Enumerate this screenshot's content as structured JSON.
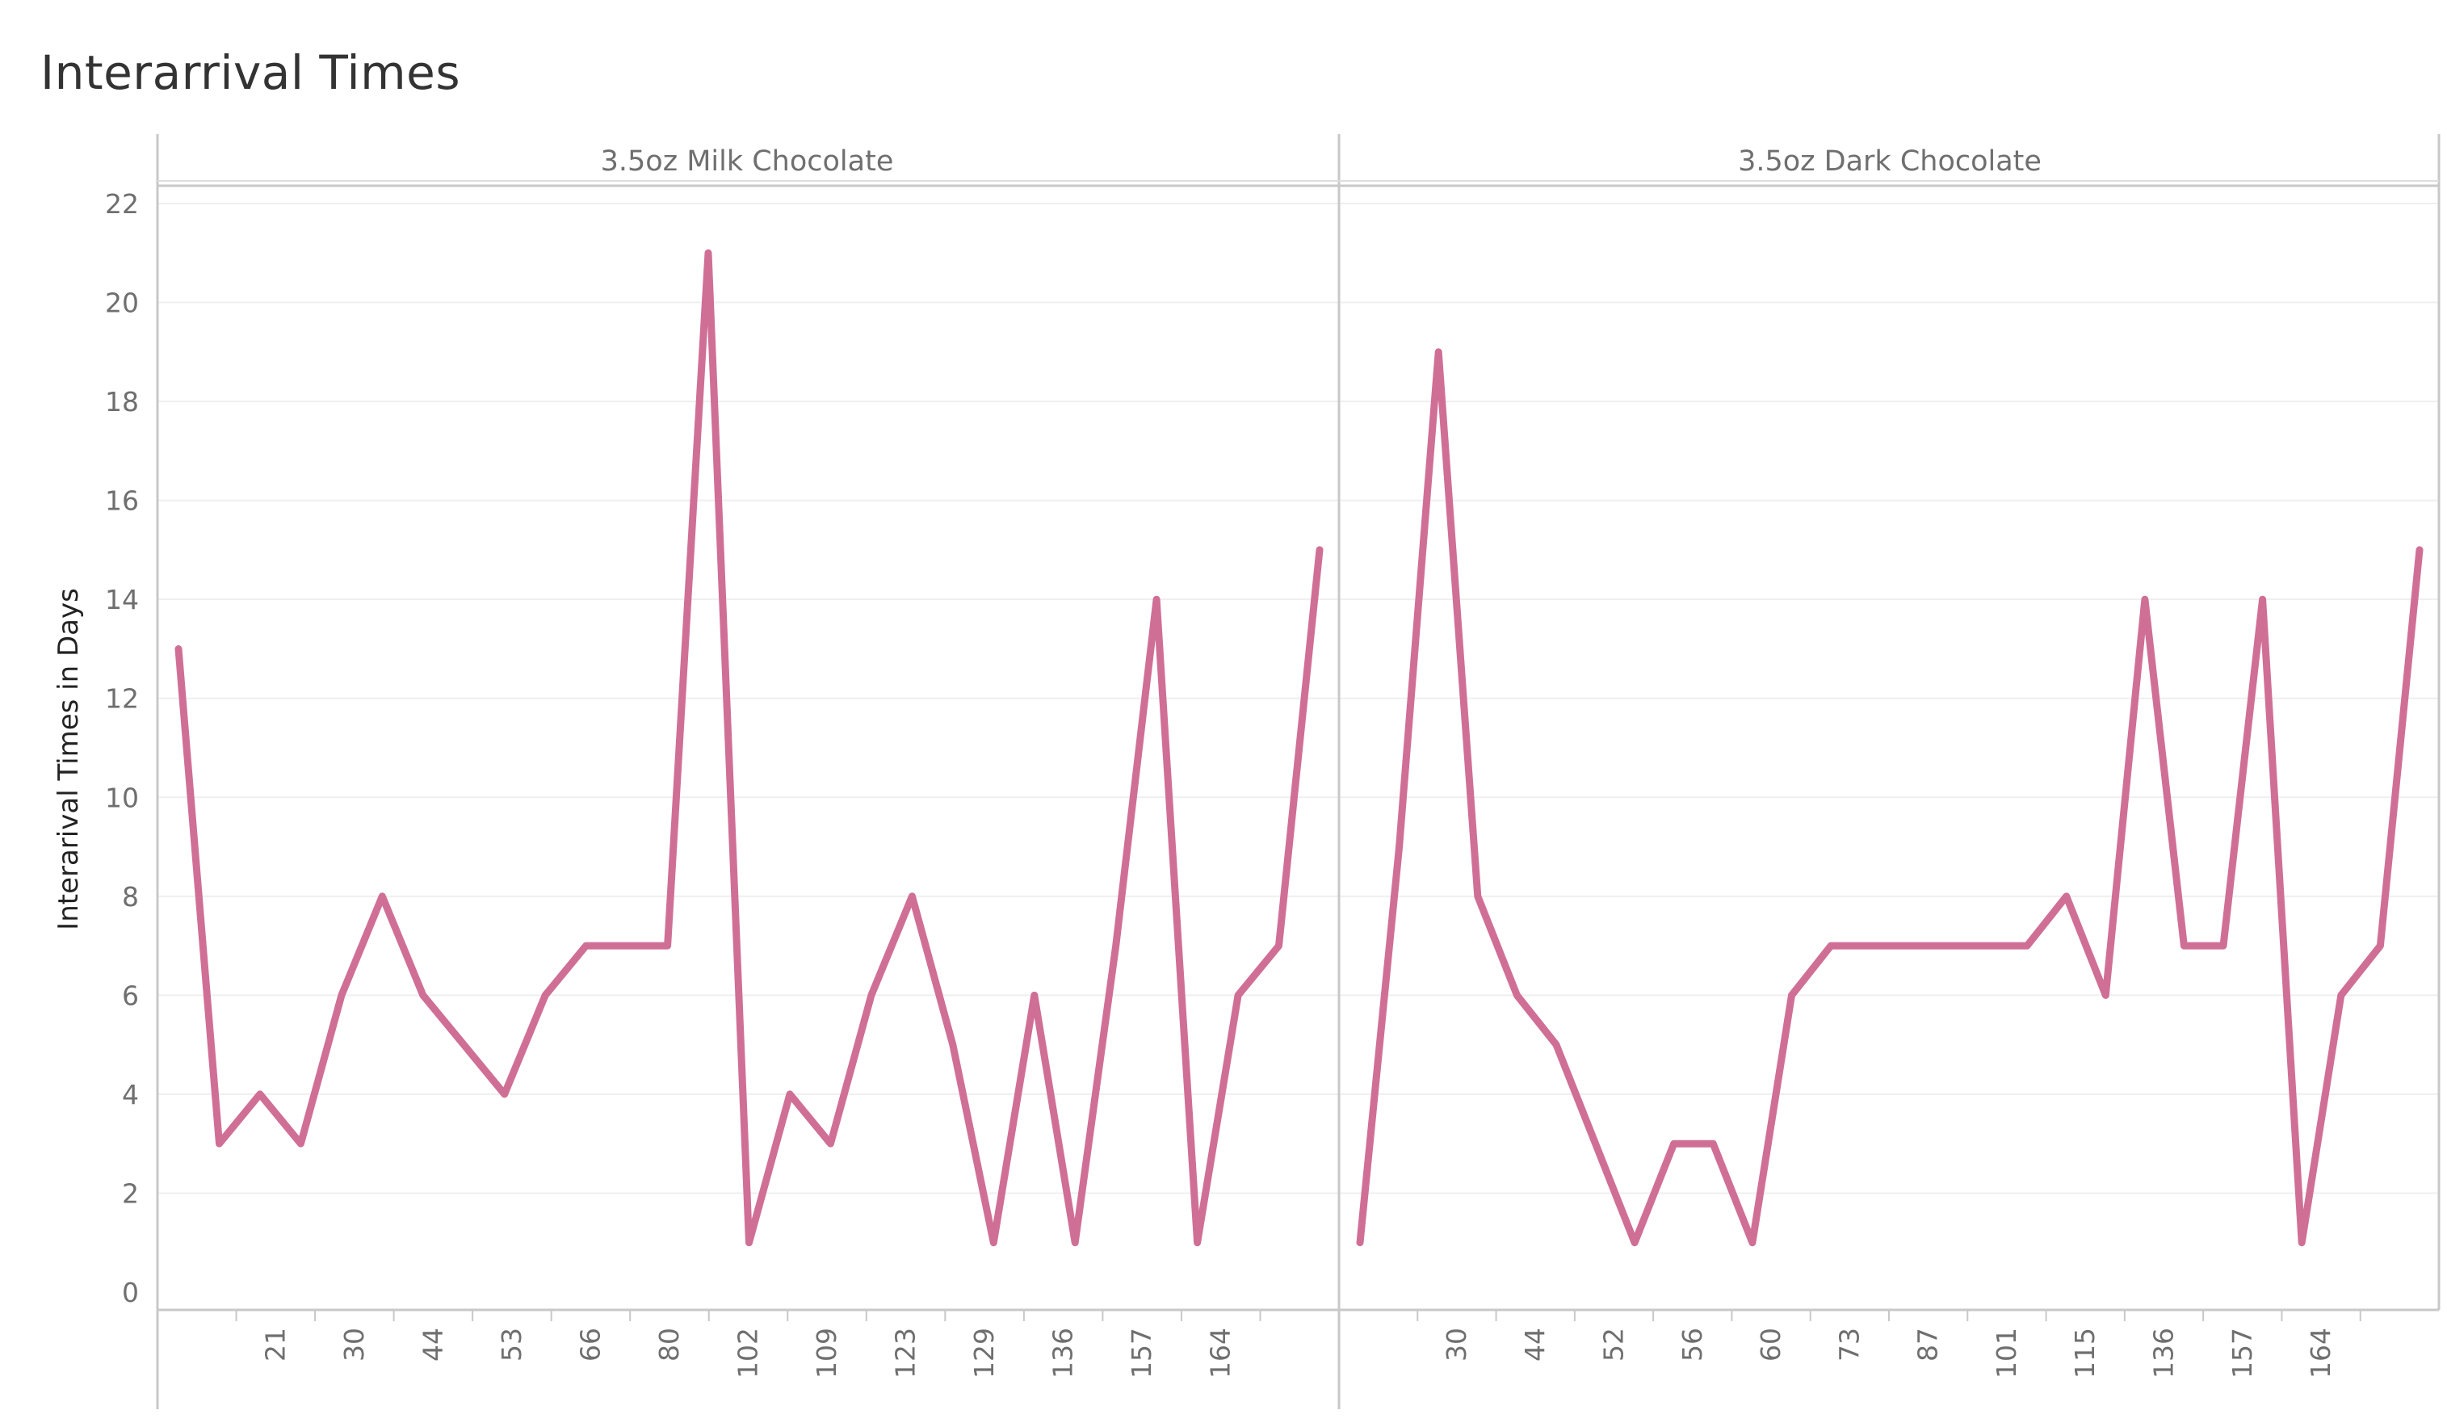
{
  "title": "Interarrival Times",
  "ylabel": "Interarival Times in Days",
  "colors": {
    "line": "#d06f96",
    "axis": "#c8c8c8",
    "grid": "#efefef",
    "text": "#6f6f6f"
  },
  "chart_data": {
    "type": "line",
    "title": "Interarrival Times",
    "ylabel": "Interarival Times in Days",
    "ylim": [
      0,
      22
    ],
    "yticks": [
      0,
      2,
      4,
      6,
      8,
      10,
      12,
      14,
      16,
      18,
      20,
      22
    ],
    "grid": true,
    "panels": [
      {
        "name": "3.5oz Milk Chocolate",
        "tick_labels": [
          "",
          "21",
          "30",
          "44",
          "53",
          "66",
          "80",
          "102",
          "109",
          "123",
          "129",
          "136",
          "157",
          "164",
          ""
        ],
        "values": [
          13,
          3,
          4,
          3,
          6,
          8,
          6,
          5,
          4,
          6,
          7,
          7,
          7,
          21,
          1,
          4,
          3,
          6,
          8,
          5,
          1,
          6,
          1,
          7,
          14,
          1,
          6,
          7,
          15
        ]
      },
      {
        "name": "3.5oz Dark Chocolate",
        "tick_labels": [
          "",
          "30",
          "44",
          "52",
          "56",
          "60",
          "73",
          "87",
          "101",
          "115",
          "136",
          "157",
          "164",
          ""
        ],
        "values": [
          1,
          9,
          19,
          8,
          6,
          5,
          3,
          1,
          3,
          3,
          1,
          6,
          7,
          7,
          7,
          7,
          7,
          7,
          8,
          6,
          14,
          7,
          7,
          14,
          1,
          6,
          7,
          15
        ]
      }
    ]
  }
}
